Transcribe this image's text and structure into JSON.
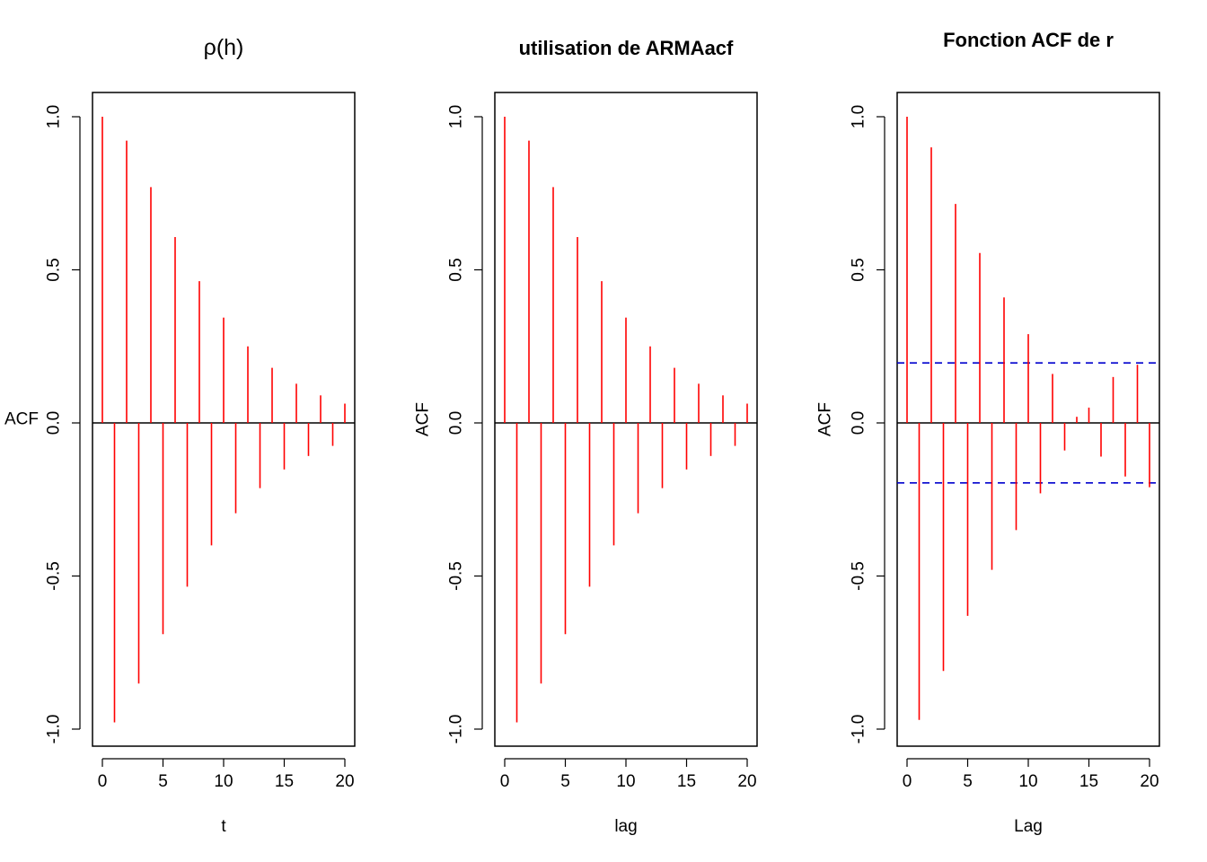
{
  "colors": {
    "spike": "#ff0000",
    "ci": "#0000cd",
    "axis": "#000000"
  },
  "chart_data": [
    {
      "type": "bar",
      "title": "ρ(h)",
      "xlabel": "t",
      "ylabel": "ACF",
      "xlim": [
        0,
        20
      ],
      "ylim": [
        -1.0,
        1.0
      ],
      "xticks": [
        "0",
        "5",
        "10",
        "15",
        "20"
      ],
      "yticks": [
        "-1.0",
        "-0.5",
        "0.0",
        "0.5",
        "1.0"
      ],
      "x": [
        0,
        1,
        2,
        3,
        4,
        5,
        6,
        7,
        8,
        9,
        10,
        11,
        12,
        13,
        14,
        15,
        16,
        17,
        18,
        19,
        20
      ],
      "values": [
        1.0,
        -0.978,
        0.922,
        -0.851,
        0.77,
        -0.69,
        0.607,
        -0.535,
        0.463,
        -0.4,
        0.344,
        -0.295,
        0.25,
        -0.213,
        0.18,
        -0.152,
        0.128,
        -0.108,
        0.09,
        -0.075,
        0.063
      ],
      "ci": null
    },
    {
      "type": "bar",
      "title": "utilisation de ARMAacf",
      "xlabel": "lag",
      "ylabel": "ACF",
      "xlim": [
        0,
        20
      ],
      "ylim": [
        -1.0,
        1.0
      ],
      "xticks": [
        "0",
        "5",
        "10",
        "15",
        "20"
      ],
      "yticks": [
        "-1.0",
        "-0.5",
        "0.0",
        "0.5",
        "1.0"
      ],
      "x": [
        0,
        1,
        2,
        3,
        4,
        5,
        6,
        7,
        8,
        9,
        10,
        11,
        12,
        13,
        14,
        15,
        16,
        17,
        18,
        19,
        20
      ],
      "values": [
        1.0,
        -0.978,
        0.922,
        -0.851,
        0.77,
        -0.69,
        0.607,
        -0.535,
        0.463,
        -0.4,
        0.344,
        -0.295,
        0.25,
        -0.213,
        0.18,
        -0.152,
        0.128,
        -0.108,
        0.09,
        -0.075,
        0.063
      ],
      "ci": null
    },
    {
      "type": "bar",
      "title": "Fonction ACF de r",
      "xlabel": "Lag",
      "ylabel": "ACF",
      "xlim": [
        0,
        20
      ],
      "ylim": [
        -1.0,
        1.0
      ],
      "xticks": [
        "0",
        "5",
        "10",
        "15",
        "20"
      ],
      "yticks": [
        "-1.0",
        "-0.5",
        "0.0",
        "0.5",
        "1.0"
      ],
      "x": [
        0,
        1,
        2,
        3,
        4,
        5,
        6,
        7,
        8,
        9,
        10,
        11,
        12,
        13,
        14,
        15,
        16,
        17,
        18,
        19,
        20
      ],
      "values": [
        1.0,
        -0.97,
        0.9,
        -0.81,
        0.715,
        -0.63,
        0.555,
        -0.48,
        0.41,
        -0.35,
        0.29,
        -0.23,
        0.16,
        -0.09,
        0.02,
        0.05,
        -0.11,
        0.15,
        -0.175,
        0.19,
        -0.21
      ],
      "ci": [
        -0.196,
        0.196
      ]
    }
  ]
}
